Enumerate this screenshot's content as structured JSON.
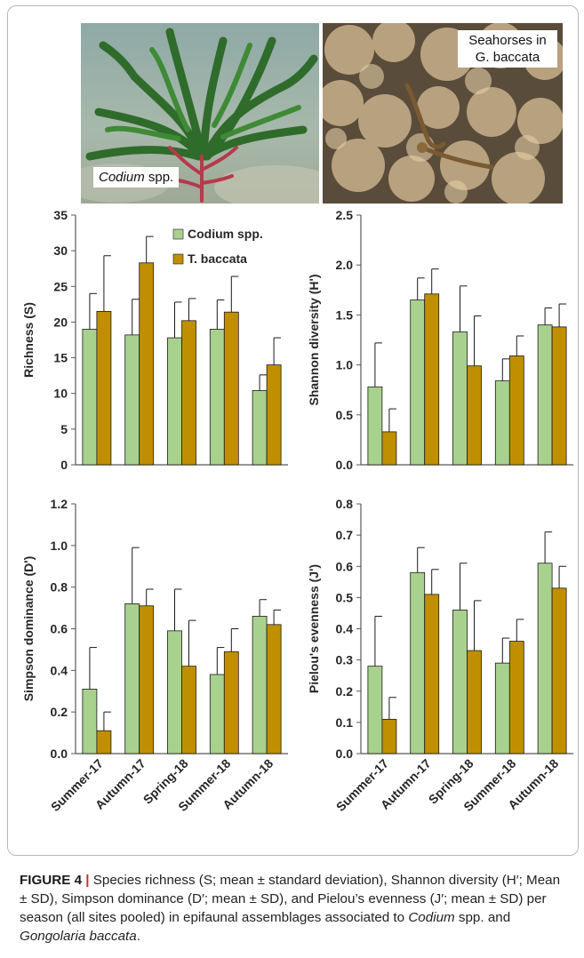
{
  "photos": {
    "left_label": "Codium",
    "left_label_suffix": " spp.",
    "right_label_line1": "Seahorses in",
    "right_label_line2": "G. baccata"
  },
  "legend": {
    "items": [
      {
        "label": "Codium spp.",
        "color": "#a9d18e"
      },
      {
        "label": "T. baccata",
        "color": "#bf8f00"
      }
    ]
  },
  "colors": {
    "codium": "#a9d18e",
    "baccata": "#bf8f00",
    "bar_edge": "#1a1a1a"
  },
  "caption": {
    "fig_label": "FIGURE 4",
    "separator": " | ",
    "p1": "Species richness (S; mean ± standard deviation), Shannon diversity (H′; Mean ± SD), Simpson dominance (D′; mean ± SD), and Pielou’s evenness (J′; mean ± SD) per season (all sites pooled) in epifaunal assemblages associated to ",
    "codium": "Codium",
    "p2": " spp. and ",
    "gongolaria": "Gongolaria baccata",
    "p3": "."
  },
  "chart_data": [
    {
      "type": "bar",
      "ylabel": "Richness (S)",
      "xlabel": "",
      "categories": [
        "Summer-17",
        "Autumn-17",
        "Spring-18",
        "Summer-18",
        "Autumn-18"
      ],
      "ylim": [
        0,
        35
      ],
      "yticks": [
        "0",
        "5",
        "10",
        "15",
        "20",
        "25",
        "30",
        "35"
      ],
      "legend": "top-right",
      "grid": false,
      "series": [
        {
          "name": "Codium spp.",
          "values": [
            19.0,
            18.2,
            17.8,
            19.0,
            10.4
          ],
          "sd": [
            5.0,
            5.0,
            5.0,
            4.1,
            2.2
          ]
        },
        {
          "name": "T. baccata",
          "values": [
            21.5,
            28.3,
            20.2,
            21.4,
            14.0
          ],
          "sd": [
            7.8,
            3.7,
            3.1,
            5.0,
            3.8
          ]
        }
      ]
    },
    {
      "type": "bar",
      "ylabel": "Shannon diversity (H')",
      "xlabel": "",
      "categories": [
        "Summer-17",
        "Autumn-17",
        "Spring-18",
        "Summer-18",
        "Autumn-18"
      ],
      "ylim": [
        0,
        2.5
      ],
      "yticks": [
        "0.0",
        "0.5",
        "1.0",
        "1.5",
        "2.0",
        "2.5"
      ],
      "grid": false,
      "series": [
        {
          "name": "Codium spp.",
          "values": [
            0.78,
            1.65,
            1.33,
            0.84,
            1.4
          ],
          "sd": [
            0.44,
            0.22,
            0.46,
            0.22,
            0.17
          ]
        },
        {
          "name": "T. baccata",
          "values": [
            0.33,
            1.71,
            0.99,
            1.09,
            1.38
          ],
          "sd": [
            0.23,
            0.25,
            0.5,
            0.2,
            0.23
          ]
        }
      ]
    },
    {
      "type": "bar",
      "ylabel": "Simpson dominance (D')",
      "xlabel": "",
      "categories": [
        "Summer-17",
        "Autumn-17",
        "Spring-18",
        "Summer-18",
        "Autumn-18"
      ],
      "ylim": [
        0,
        1.2
      ],
      "yticks": [
        "0.0",
        "0.2",
        "0.4",
        "0.6",
        "0.8",
        "1.0",
        "1.2"
      ],
      "grid": false,
      "series": [
        {
          "name": "Codium spp.",
          "values": [
            0.31,
            0.72,
            0.59,
            0.38,
            0.66
          ],
          "sd": [
            0.2,
            0.27,
            0.2,
            0.13,
            0.08
          ]
        },
        {
          "name": "T. baccata",
          "values": [
            0.11,
            0.71,
            0.42,
            0.49,
            0.62
          ],
          "sd": [
            0.09,
            0.08,
            0.22,
            0.11,
            0.07
          ]
        }
      ]
    },
    {
      "type": "bar",
      "ylabel": "Pielou's evenness (J')",
      "xlabel": "",
      "categories": [
        "Summer-17",
        "Autumn-17",
        "Spring-18",
        "Summer-18",
        "Autumn-18"
      ],
      "ylim": [
        0,
        0.8
      ],
      "yticks": [
        "0.0",
        "0.1",
        "0.2",
        "0.3",
        "0.4",
        "0.5",
        "0.6",
        "0.7",
        "0.8"
      ],
      "grid": false,
      "series": [
        {
          "name": "Codium spp.",
          "values": [
            0.28,
            0.58,
            0.46,
            0.29,
            0.61
          ],
          "sd": [
            0.16,
            0.08,
            0.15,
            0.08,
            0.1
          ]
        },
        {
          "name": "T. baccata",
          "values": [
            0.11,
            0.51,
            0.33,
            0.36,
            0.53
          ],
          "sd": [
            0.07,
            0.08,
            0.16,
            0.07,
            0.07
          ]
        }
      ]
    }
  ]
}
